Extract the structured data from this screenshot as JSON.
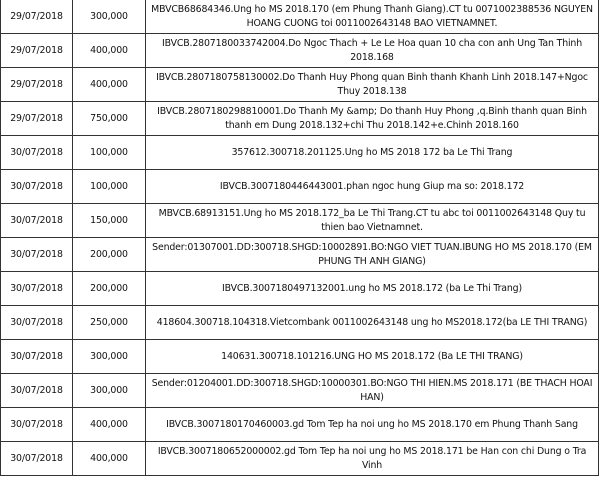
{
  "rows": [
    {
      "date": "29/07/2018",
      "amount": "300,000",
      "desc": "MBVCB68684346.Ung ho MS 2018.170 (em Phung Thanh Giang).CT tu 0071002388536 NGUYEN HOANG CUONG toi 0011002643148 BAO VIETNAMNET."
    },
    {
      "date": "29/07/2018",
      "amount": "400,000",
      "desc": "IBVCB.2807180033742004.Do Ngoc Thach + Le Le Hoa quan 10 cha con anh Ung Tan Thinh 2018.168"
    },
    {
      "date": "29/07/2018",
      "amount": "400,000",
      "desc": "IBVCB.2807180758130002.Do Thanh Huy Phong quan Binh thanh Khanh Linh 2018.147+Ngoc Thuy 2018.138"
    },
    {
      "date": "29/07/2018",
      "amount": "750,000",
      "desc": "IBVCB.2807180298810001.Do Thanh My &amp; Do thanh Huy Phong ,q.Binh thanh quan Binh thanh em Dung 2018.132+chi Thu 2018.142+e.Chinh 2018.160"
    },
    {
      "date": "30/07/2018",
      "amount": "100,000",
      "desc": "357612.300718.201125.Ung ho MS 2018 172 ba Le Thi Trang"
    },
    {
      "date": "30/07/2018",
      "amount": "100,000",
      "desc": "IBVCB.3007180446443001.phan ngoc hung Giup ma so: 2018.172"
    },
    {
      "date": "30/07/2018",
      "amount": "150,000",
      "desc": "MBVCB.68913151.Ung ho MS 2018.172_ba Le Thi Trang.CT tu abc toi 0011002643148 Quy tu thien bao Vietnamnet."
    },
    {
      "date": "30/07/2018",
      "amount": "200,000",
      "desc": "Sender:01307001.DD:300718.SHGD:10002891.BO:NGO VIET TUAN.IBUNG HO MS 2018.170 (EM PHUNG TH ANH GIANG)"
    },
    {
      "date": "30/07/2018",
      "amount": "200,000",
      "desc": "IBVCB.3007180497132001.ung ho MS 2018.172 (ba Le Thi Trang)"
    },
    {
      "date": "30/07/2018",
      "amount": "250,000",
      "desc": "418604.300718.104318.Vietcombank 0011002643148 ung ho MS2018.172(ba LE THI TRANG)"
    },
    {
      "date": "30/07/2018",
      "amount": "300,000",
      "desc": "140631.300718.101216.UNG HO MS 2018.172 (Ba LE THI TRANG)"
    },
    {
      "date": "30/07/2018",
      "amount": "300,000",
      "desc": "Sender:01204001.DD:300718.SHGD:10000301.BO:NGO THI HIEN.MS 2018.171 (BE THACH HOAI HAN)"
    },
    {
      "date": "30/07/2018",
      "amount": "400,000",
      "desc": "IBVCB.3007180170460003.gd Tom Tep ha noi ung ho MS 2018.170 em Phung Thanh Sang"
    },
    {
      "date": "30/07/2018",
      "amount": "400,000",
      "desc": "IBVCB.3007180652000002.gd Tom Tep ha noi ung ho MS 2018.171 be Han con chi Dung o Tra Vinh"
    }
  ]
}
